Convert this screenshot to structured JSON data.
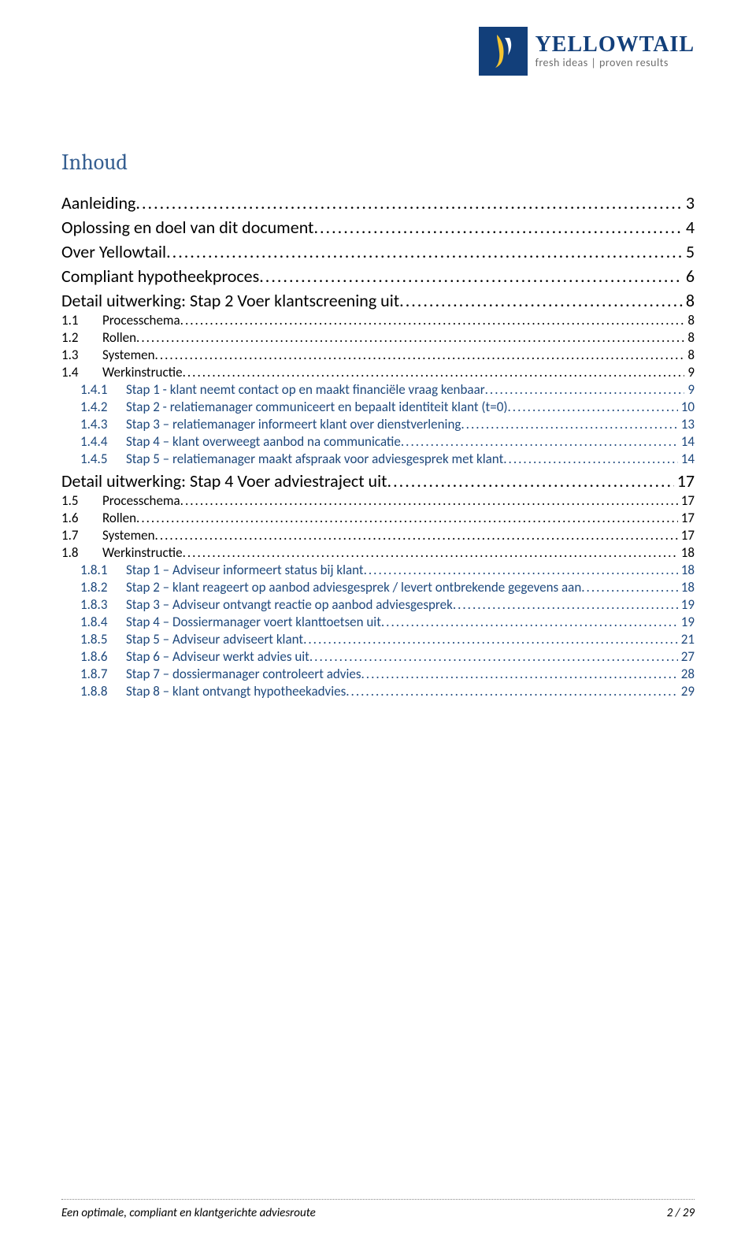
{
  "brand": {
    "name": "YELLOWTAIL",
    "tagline": "fresh ideas | proven results",
    "logo_bg": "#123f7a",
    "brand_color": "#123f7a",
    "tag_color": "#6e6e6e"
  },
  "colors": {
    "heading": "#365f91",
    "link": "#1f497d",
    "text": "#000000",
    "page_bg": "#ffffff"
  },
  "title": "Inhoud",
  "footer": {
    "left": "Een optimale, compliant en klantgerichte adviesroute",
    "right": "2 / 29"
  },
  "toc": [
    {
      "level": 1,
      "num": "",
      "label": "Aanleiding",
      "page": "3"
    },
    {
      "level": 1,
      "num": "",
      "label": "Oplossing en doel van dit document",
      "page": "4"
    },
    {
      "level": 1,
      "num": "",
      "label": "Over Yellowtail",
      "page": "5"
    },
    {
      "level": 1,
      "num": "",
      "label": "Compliant hypotheekproces",
      "page": "6"
    },
    {
      "level": 1,
      "num": "",
      "label": "Detail uitwerking: Stap 2 Voer klantscreening uit",
      "page": "8"
    },
    {
      "level": 2,
      "num": "1.1",
      "label": "Processchema",
      "page": "8"
    },
    {
      "level": 2,
      "num": "1.2",
      "label": "Rollen",
      "page": "8"
    },
    {
      "level": 2,
      "num": "1.3",
      "label": "Systemen",
      "page": "8"
    },
    {
      "level": 2,
      "num": "1.4",
      "label": "Werkinstructie",
      "page": "9"
    },
    {
      "level": 3,
      "num": "1.4.1",
      "label": "Stap 1 - klant neemt contact op en maakt financiële vraag kenbaar",
      "page": "9"
    },
    {
      "level": 3,
      "num": "1.4.2",
      "label": "Stap 2 - relatiemanager communiceert en bepaalt identiteit klant (t=0)",
      "page": "10"
    },
    {
      "level": 3,
      "num": "1.4.3",
      "label": "Stap 3 – relatiemanager informeert klant over dienstverlening",
      "page": "13"
    },
    {
      "level": 3,
      "num": "1.4.4",
      "label": "Stap 4 – klant overweegt aanbod na communicatie",
      "page": "14"
    },
    {
      "level": 3,
      "num": "1.4.5",
      "label": "Stap 5 – relatiemanager maakt afspraak voor adviesgesprek met klant",
      "page": "14"
    },
    {
      "level": 1,
      "num": "",
      "label": "Detail uitwerking: Stap 4 Voer adviestraject uit",
      "page": "17"
    },
    {
      "level": 2,
      "num": "1.5",
      "label": "Processchema",
      "page": "17"
    },
    {
      "level": 2,
      "num": "1.6",
      "label": "Rollen",
      "page": "17"
    },
    {
      "level": 2,
      "num": "1.7",
      "label": "Systemen",
      "page": "17"
    },
    {
      "level": 2,
      "num": "1.8",
      "label": "Werkinstructie",
      "page": "18"
    },
    {
      "level": 3,
      "num": "1.8.1",
      "label": "Stap 1 – Adviseur informeert status bij klant",
      "page": "18"
    },
    {
      "level": 3,
      "num": "1.8.2",
      "label": "Stap 2 – klant reageert op aanbod adviesgesprek / levert ontbrekende gegevens aan",
      "page": "18"
    },
    {
      "level": 3,
      "num": "1.8.3",
      "label": "Stap 3 – Adviseur ontvangt reactie op aanbod adviesgesprek",
      "page": "19"
    },
    {
      "level": 3,
      "num": "1.8.4",
      "label": "Stap 4 – Dossiermanager voert klanttoetsen uit",
      "page": "19"
    },
    {
      "level": 3,
      "num": "1.8.5",
      "label": "Stap 5 – Adviseur adviseert klant",
      "page": "21"
    },
    {
      "level": 3,
      "num": "1.8.6",
      "label": "Stap 6 – Adviseur werkt advies uit",
      "page": "27"
    },
    {
      "level": 3,
      "num": "1.8.7",
      "label": "Stap 7 – dossiermanager controleert advies",
      "page": "28"
    },
    {
      "level": 3,
      "num": "1.8.8",
      "label": "Stap 8 – klant ontvangt hypotheekadvies",
      "page": "29"
    }
  ]
}
